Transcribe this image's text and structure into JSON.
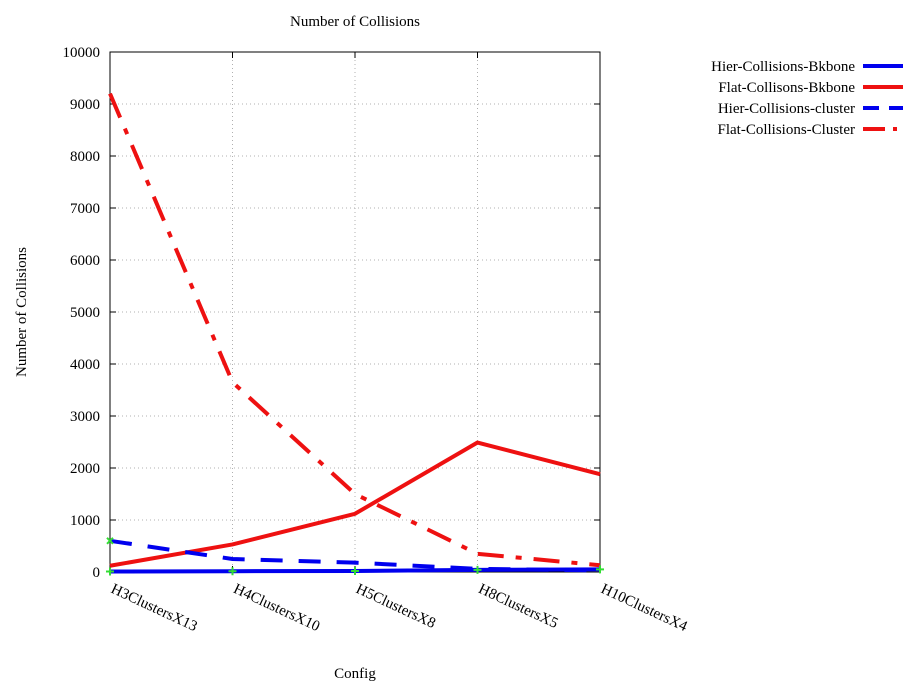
{
  "chart_data": {
    "type": "line",
    "title": "Number of Collisions",
    "xlabel": "Config",
    "ylabel": "Number of Collisions",
    "categories": [
      "H3ClustersX13",
      "H4ClustersX10",
      "H5ClustersX8",
      "H8ClustersX5",
      "H10ClustersX4"
    ],
    "ylim": [
      0,
      10000
    ],
    "yticks": [
      0,
      1000,
      2000,
      3000,
      4000,
      5000,
      6000,
      7000,
      8000,
      9000,
      10000
    ],
    "grid": true,
    "legend_position": "top-right outside",
    "series": [
      {
        "name": "Hier-Collisions-Bkbone",
        "color": "#0000ee",
        "style": "solid",
        "values": [
          10,
          15,
          20,
          40,
          50
        ]
      },
      {
        "name": "Flat-Collisons-Bkbone",
        "color": "#ee1111",
        "style": "solid",
        "values": [
          120,
          530,
          1120,
          2490,
          1880
        ]
      },
      {
        "name": "Hier-Collisions-cluster",
        "color": "#0000ee",
        "style": "dashed",
        "values": [
          600,
          250,
          180,
          60,
          30
        ]
      },
      {
        "name": "Flat-Collisions-Cluster",
        "color": "#ee1111",
        "style": "dashdot",
        "values": [
          9200,
          3650,
          1500,
          350,
          130
        ]
      }
    ],
    "marker_color": "#33dd33"
  }
}
